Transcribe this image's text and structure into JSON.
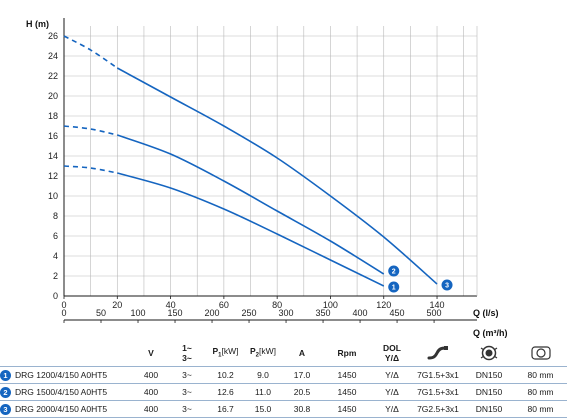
{
  "colors": {
    "curve": "#1565c0",
    "grid": "#b9b9b9",
    "axis": "#1a1a1a"
  },
  "chart_data": {
    "type": "line",
    "ylabel": "H (m)",
    "xlabel": "Q (l/s)",
    "x2label": "Q (m³/h)",
    "xlim": [
      0,
      155
    ],
    "ylim": [
      0,
      27
    ],
    "x_ticks": [
      0,
      20,
      40,
      60,
      80,
      100,
      120,
      140
    ],
    "y_ticks": [
      0,
      2,
      4,
      6,
      8,
      10,
      12,
      14,
      16,
      18,
      20,
      22,
      24,
      26
    ],
    "x2_ticks": [
      0,
      50,
      100,
      150,
      200,
      250,
      300,
      350,
      400,
      450,
      500
    ],
    "x2_per_x": 3.6,
    "grid": true,
    "series": [
      {
        "marker": "1",
        "dashed": [
          [
            0,
            13.0
          ],
          [
            10,
            12.8
          ],
          [
            20,
            12.3
          ]
        ],
        "values": [
          [
            20,
            12.3
          ],
          [
            40,
            10.8
          ],
          [
            60,
            8.7
          ],
          [
            80,
            6.2
          ],
          [
            100,
            3.6
          ],
          [
            120,
            1.0
          ]
        ]
      },
      {
        "marker": "2",
        "dashed": [
          [
            0,
            17.0
          ],
          [
            10,
            16.7
          ],
          [
            20,
            16.1
          ]
        ],
        "values": [
          [
            20,
            16.1
          ],
          [
            40,
            14.2
          ],
          [
            60,
            11.5
          ],
          [
            80,
            8.5
          ],
          [
            100,
            5.5
          ],
          [
            120,
            2.2
          ]
        ]
      },
      {
        "marker": "3",
        "dashed": [
          [
            0,
            26.0
          ],
          [
            10,
            24.6
          ],
          [
            20,
            22.8
          ]
        ],
        "values": [
          [
            20,
            22.8
          ],
          [
            40,
            19.9
          ],
          [
            60,
            17.0
          ],
          [
            80,
            13.8
          ],
          [
            100,
            10.0
          ],
          [
            120,
            5.9
          ],
          [
            140,
            1.2
          ]
        ]
      }
    ]
  },
  "table": {
    "headers": {
      "v": "V",
      "phase_top": "1~",
      "phase_bottom": "3~",
      "p1_main": "P",
      "p1_sub": "1",
      "p1_unit": "[kW]",
      "p2_main": "P",
      "p2_sub": "2",
      "p2_unit": "[kW]",
      "a": "A",
      "rpm": "Rpm",
      "dol_top": "DOL",
      "dol_bottom": "Y/Δ",
      "cable_icon": "cable-icon",
      "outlet_icon": "outlet-flange-icon",
      "passage_icon": "solids-passage-icon"
    },
    "rows": [
      {
        "num": "1",
        "model": "DRG 1200/4/150 A0HT5",
        "v": "400",
        "phase": "3~",
        "p1": "10.2",
        "p2": "9.0",
        "a": "17.0",
        "rpm": "1450",
        "start": "Y/Δ",
        "cable": "7G1.5+3x1",
        "dn": "DN150",
        "passage": "80 mm"
      },
      {
        "num": "2",
        "model": "DRG 1500/4/150 A0HT5",
        "v": "400",
        "phase": "3~",
        "p1": "12.6",
        "p2": "11.0",
        "a": "20.5",
        "rpm": "1450",
        "start": "Y/Δ",
        "cable": "7G1.5+3x1",
        "dn": "DN150",
        "passage": "80 mm"
      },
      {
        "num": "3",
        "model": "DRG 2000/4/150 A0HT5",
        "v": "400",
        "phase": "3~",
        "p1": "16.7",
        "p2": "15.0",
        "a": "30.8",
        "rpm": "1450",
        "start": "Y/Δ",
        "cable": "7G2.5+3x1",
        "dn": "DN150",
        "passage": "80 mm"
      }
    ]
  }
}
